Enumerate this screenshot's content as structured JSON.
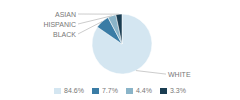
{
  "chart_data": {
    "type": "pie",
    "categories": [
      "WHITE",
      "BLACK",
      "HISPANIC",
      "ASIAN"
    ],
    "values": [
      84.6,
      7.7,
      4.4,
      3.3
    ],
    "value_labels": [
      "84.6%",
      "7.7%",
      "4.4%",
      "3.3%"
    ],
    "colors": [
      "#d4e6f1",
      "#3a7ca5",
      "#8ab4c8",
      "#1a3d52"
    ],
    "legend": "bottom"
  }
}
